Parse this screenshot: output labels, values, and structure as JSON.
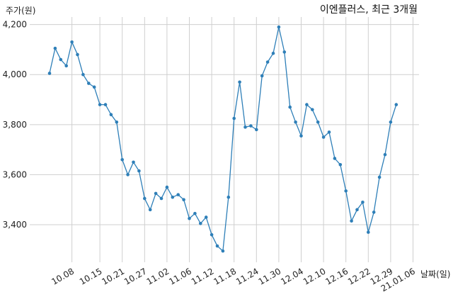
{
  "chart_data": {
    "type": "line",
    "title": "이엔플러스, 최근 3개월",
    "ylabel": "주가(원)",
    "xlabel": "날짜(일)",
    "ylim": [
      3250,
      4230
    ],
    "yticks": [
      3400,
      3600,
      3800,
      4000,
      4200
    ],
    "ytick_labels": [
      "3,400",
      "3,600",
      "3,800",
      "4,000",
      "4,200"
    ],
    "xtick_labels": [
      "10.08",
      "10.15",
      "10.21",
      "10.27",
      "11.02",
      "11.06",
      "11.12",
      "11.18",
      "11.24",
      "11.30",
      "12.04",
      "12.10",
      "12.16",
      "12.22",
      "12.29",
      "21.01.06"
    ],
    "xtick_index": [
      4,
      9,
      13,
      17,
      21,
      25,
      29,
      33,
      37,
      41,
      45,
      49,
      53,
      57,
      61,
      65
    ],
    "grid": true,
    "line_color": "#2e7fb8",
    "series": [
      {
        "values": [
          4005,
          4105,
          4060,
          4035,
          4130,
          4080,
          4000,
          3965,
          3950,
          3880,
          3880,
          3840,
          3810,
          3660,
          3600,
          3650,
          3615,
          3505,
          3460,
          3525,
          3505,
          3550,
          3510,
          3520,
          3500,
          3425,
          3445,
          3405,
          3430,
          3360,
          3315,
          3295,
          3510,
          3825,
          3970,
          3790,
          3795,
          3780,
          3995,
          4050,
          4085,
          4190,
          4090,
          3870,
          3810,
          3755,
          3880,
          3860,
          3810,
          3750,
          3770,
          3665,
          3640,
          3535,
          3415,
          3460,
          3490,
          3370,
          3450,
          3590,
          3680,
          3810,
          3880
        ]
      }
    ]
  }
}
